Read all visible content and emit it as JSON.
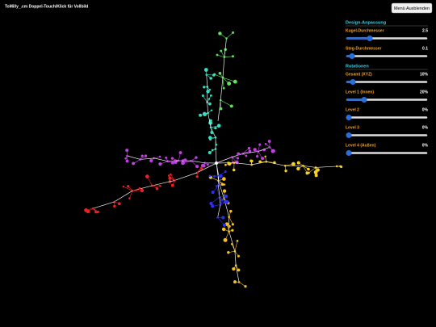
{
  "header": {
    "hint": "ToMilly_.cm  Doppel-Touch/Klick für Vollbild"
  },
  "button": {
    "label": "Menü Ausblenden"
  },
  "panel": {
    "sections": [
      {
        "title": "Design-Anpassung",
        "controls": [
          {
            "label": "Kugel-Durchmesser",
            "value": "2.5"
          },
          {
            "label": "Steg-Durchmesser",
            "value": "0.1"
          }
        ]
      },
      {
        "title": "Rotationen",
        "controls": [
          {
            "label": "Gesamt (XYZ)",
            "value": "10%"
          },
          {
            "label": "Level 1 (Innen)",
            "value": "20%"
          },
          {
            "label": "Level 2",
            "value": "0%"
          },
          {
            "label": "Level 3",
            "value": "0%"
          },
          {
            "label": "Level 4 (Außen)",
            "value": "0%"
          }
        ]
      }
    ]
  }
}
